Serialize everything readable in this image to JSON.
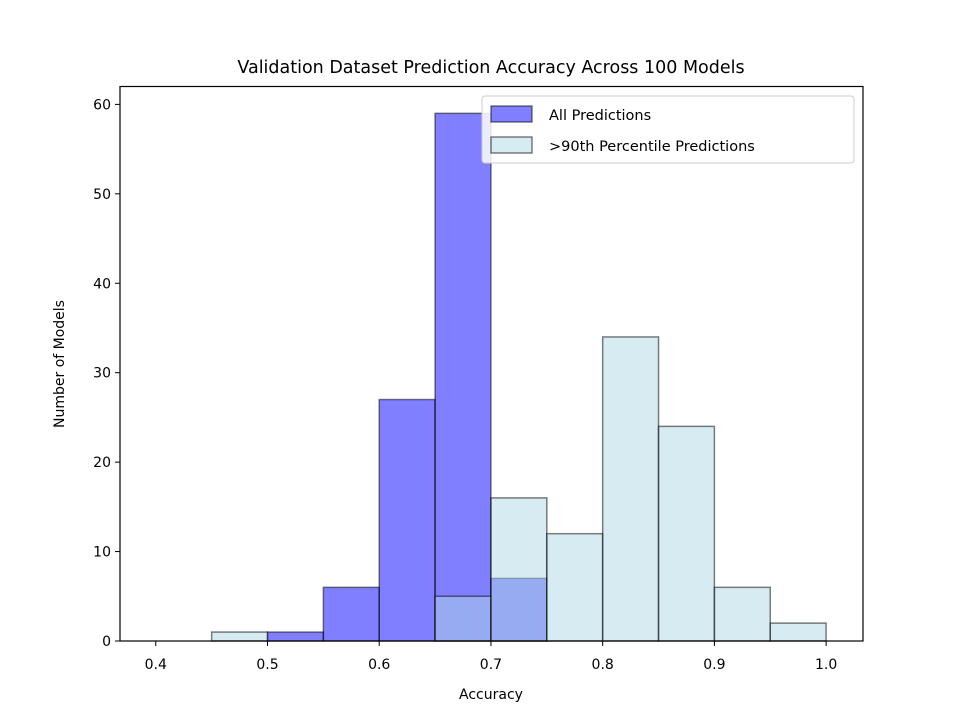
{
  "chart_data": {
    "type": "histogram",
    "title": "Validation Dataset Prediction Accuracy Across 100 Models",
    "xlabel": "Accuracy",
    "ylabel": "Number of Models",
    "xlim": [
      0.368,
      1.033
    ],
    "ylim": [
      0,
      62
    ],
    "xticks": [
      0.4,
      0.5,
      0.6,
      0.7,
      0.8,
      0.9,
      1.0
    ],
    "xtick_labels": [
      "0.4",
      "0.5",
      "0.6",
      "0.7",
      "0.8",
      "0.9",
      "1.0"
    ],
    "yticks": [
      0,
      10,
      20,
      30,
      40,
      50,
      60
    ],
    "ytick_labels": [
      "0",
      "10",
      "20",
      "30",
      "40",
      "50",
      "60"
    ],
    "bin_edges": [
      0.4,
      0.45,
      0.5,
      0.55,
      0.6,
      0.65,
      0.7,
      0.75,
      0.8,
      0.85,
      0.9,
      0.95,
      1.0
    ],
    "grid": false,
    "legend_position": "upper right",
    "series": [
      {
        "name": "All Predictions",
        "color": "#0000ff",
        "alpha": 0.5,
        "values": [
          0,
          0,
          1,
          6,
          27,
          59,
          7,
          0,
          0,
          0,
          0,
          0
        ]
      },
      {
        "name": ">90th Percentile Predictions",
        "color": "#add8e6",
        "alpha": 0.5,
        "values": [
          0,
          1,
          0,
          0,
          0,
          5,
          16,
          12,
          34,
          24,
          6,
          2
        ]
      }
    ]
  }
}
